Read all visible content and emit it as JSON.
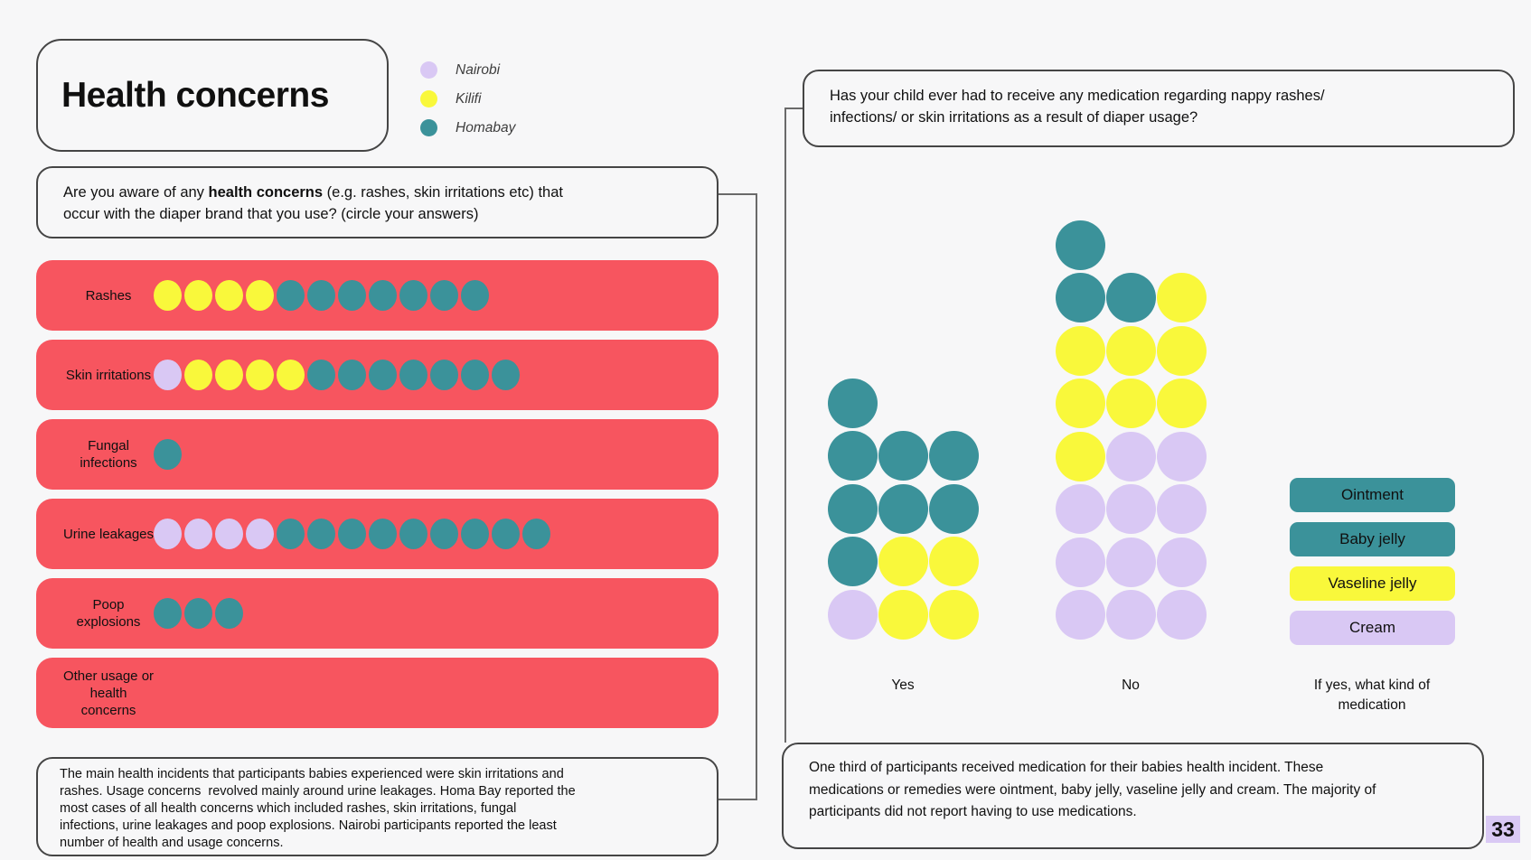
{
  "title": "Health concerns",
  "page_number": "33",
  "colors": {
    "nairobi": "#D9C8F4",
    "kilifi": "#F9F83B",
    "homabay": "#3B929A",
    "bar_red": "#F7555F",
    "background": "#F7F7F8",
    "page_number_highlight": "#D9C9F4"
  },
  "legend": {
    "items": [
      {
        "label": "Nairobi",
        "region": "nairobi"
      },
      {
        "label": "Kilifi",
        "region": "kilifi"
      },
      {
        "label": "Homabay",
        "region": "homabay"
      }
    ]
  },
  "left_chart": {
    "question": {
      "line1_prefix": "Are you aware of any ",
      "line1_bold": "health concerns",
      "line1_suffix": " (e.g. rashes, skin irritations etc) that",
      "line2": "occur with the diaper brand that you use? (circle your answers)"
    },
    "rows": [
      {
        "label": "Rashes",
        "dots": [
          "kilifi",
          "kilifi",
          "kilifi",
          "kilifi",
          "homabay",
          "homabay",
          "homabay",
          "homabay",
          "homabay",
          "homabay",
          "homabay"
        ]
      },
      {
        "label": "Skin irritations",
        "dots": [
          "nairobi",
          "kilifi",
          "kilifi",
          "kilifi",
          "kilifi",
          "homabay",
          "homabay",
          "homabay",
          "homabay",
          "homabay",
          "homabay",
          "homabay"
        ]
      },
      {
        "label": "Fungal infections",
        "dots": [
          "homabay"
        ]
      },
      {
        "label": "Urine leakages",
        "dots": [
          "nairobi",
          "nairobi",
          "nairobi",
          "nairobi",
          "homabay",
          "homabay",
          "homabay",
          "homabay",
          "homabay",
          "homabay",
          "homabay",
          "homabay",
          "homabay"
        ]
      },
      {
        "label": "Poop explosions",
        "dots": [
          "homabay",
          "homabay",
          "homabay"
        ]
      },
      {
        "label": "Other usage or health concerns",
        "dots": []
      }
    ],
    "conclusion_lines": [
      "The main health incidents that participants babies experienced were skin irritations and",
      "rashes. Usage concerns  revolved mainly around urine leakages. Homa Bay reported the",
      "most cases of all health concerns which included rashes, skin irritations, fungal",
      "infections, urine leakages and poop explosions. Nairobi participants reported the least",
      "number of health and usage concerns."
    ]
  },
  "right_chart": {
    "question_lines": [
      "Has your child ever had to receive any medication regarding nappy rashes/",
      "infections/ or skin irritations as a result of diaper usage?"
    ],
    "groups": [
      {
        "label": "Yes",
        "rows": [
          [
            "homabay",
            null,
            null
          ],
          [
            "homabay",
            "homabay",
            "homabay"
          ],
          [
            "homabay",
            "homabay",
            "homabay"
          ],
          [
            "homabay",
            "kilifi",
            "kilifi"
          ],
          [
            "nairobi",
            "kilifi",
            "kilifi"
          ]
        ]
      },
      {
        "label": "No",
        "rows": [
          [
            "homabay",
            null,
            null
          ],
          [
            "homabay",
            "homabay",
            "kilifi"
          ],
          [
            "kilifi",
            "kilifi",
            "kilifi"
          ],
          [
            "kilifi",
            "kilifi",
            "kilifi"
          ],
          [
            "kilifi",
            "nairobi",
            "nairobi"
          ],
          [
            "nairobi",
            "nairobi",
            "nairobi"
          ],
          [
            "nairobi",
            "nairobi",
            "nairobi"
          ],
          [
            "nairobi",
            "nairobi",
            "nairobi"
          ]
        ]
      }
    ],
    "axis_caption_lines": [
      "If yes, what kind of",
      "medication"
    ],
    "med_legend": [
      {
        "label": "Ointment",
        "region": "homabay"
      },
      {
        "label": "Baby jelly",
        "region": "homabay"
      },
      {
        "label": "Vaseline jelly",
        "region": "kilifi"
      },
      {
        "label": "Cream",
        "region": "nairobi"
      }
    ],
    "conclusion_lines": [
      "One third of participants received medication for their babies health incident. These",
      "medications or remedies were ointment, baby jelly, vaseline jelly and cream. The majority of",
      "participants did not report having to use medications."
    ]
  },
  "chart_data": [
    {
      "type": "bar",
      "title": "Are you aware of any health concerns (e.g. rashes, skin irritations etc) that occur with the diaper brand that you use? (circle your answers)",
      "unit": "1 dot = 1 participant response",
      "categories": [
        "Rashes",
        "Skin irritations",
        "Fungal infections",
        "Urine leakages",
        "Poop explosions",
        "Other usage or health concerns"
      ],
      "series": [
        {
          "name": "Nairobi",
          "values": [
            0,
            1,
            0,
            4,
            0,
            0
          ]
        },
        {
          "name": "Kilifi",
          "values": [
            4,
            4,
            0,
            0,
            0,
            0
          ]
        },
        {
          "name": "Homabay",
          "values": [
            7,
            7,
            1,
            9,
            3,
            0
          ]
        }
      ],
      "legend_position": "top-left"
    },
    {
      "type": "bar",
      "title": "Has your child ever had to receive any medication regarding nappy rashes/ infections/ or skin irritations as a result of diaper usage?",
      "unit": "1 dot = 1 participant response",
      "categories": [
        "Yes",
        "No"
      ],
      "series": [
        {
          "name": "Nairobi",
          "values": [
            1,
            11
          ]
        },
        {
          "name": "Kilifi",
          "values": [
            4,
            8
          ]
        },
        {
          "name": "Homabay",
          "values": [
            8,
            3
          ]
        }
      ],
      "totals": {
        "Yes": 13,
        "No": 22
      },
      "medication_kinds": [
        "Ointment",
        "Baby jelly",
        "Vaseline jelly",
        "Cream"
      ]
    }
  ]
}
